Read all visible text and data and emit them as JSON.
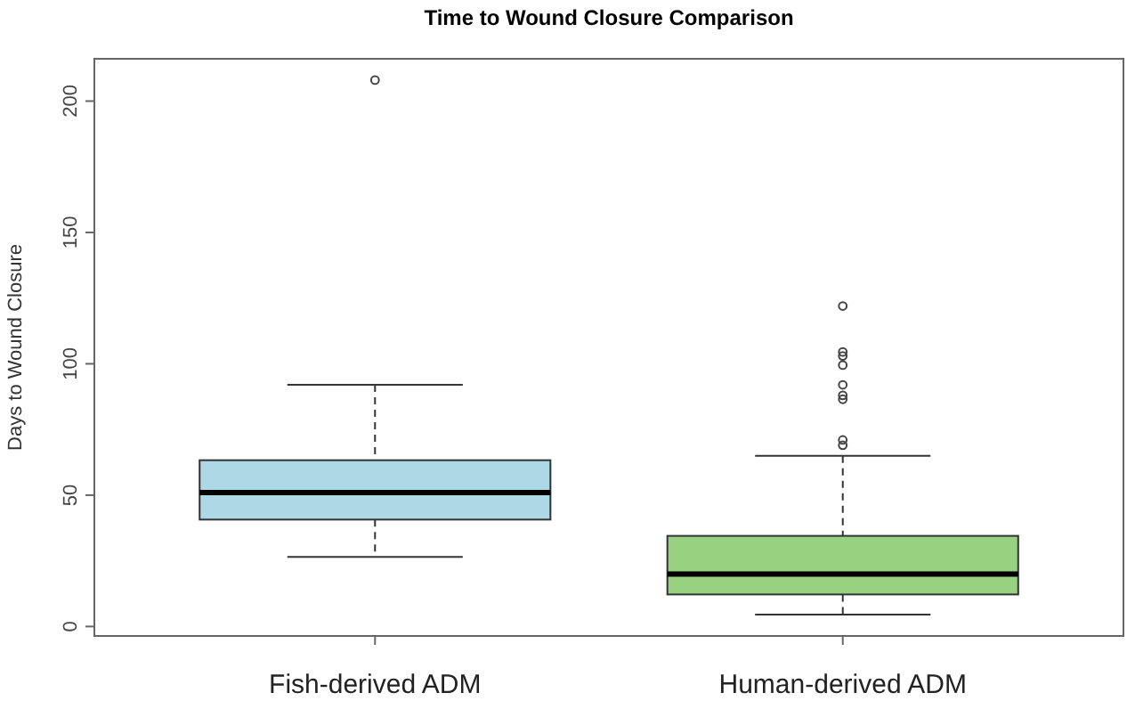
{
  "chart_data": {
    "type": "box",
    "title": "Time to Wound Closure Comparison",
    "ylabel": "Days to Wound Closure",
    "categories": [
      "Fish-derived ADM",
      "Human-derived ADM"
    ],
    "colors": [
      "#add8e6",
      "#98d180"
    ],
    "boxes": [
      {
        "low": 26.5,
        "q1": 40.7,
        "median": 51,
        "q3": 63.3,
        "high": 92,
        "outliers": [
          208
        ]
      },
      {
        "low": 4.5,
        "q1": 12.2,
        "median": 20,
        "q3": 34.5,
        "high": 65,
        "outliers": [
          122,
          104.5,
          103,
          99.5,
          92,
          88,
          86.5,
          71,
          69
        ]
      }
    ],
    "ylim": [
      -3.6,
      216.1
    ],
    "yticks": [
      0,
      50,
      100,
      150,
      200
    ]
  }
}
